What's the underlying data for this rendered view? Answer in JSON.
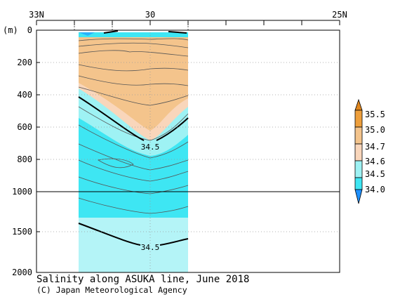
{
  "chart_data": {
    "type": "heatmap",
    "title": "Salinity along ASUKA line, June 2018",
    "credit": "(C) Japan Meteorological Agency",
    "y_unit": "(m)",
    "x_ticks": [
      "33N",
      "30",
      "25N"
    ],
    "x_tick_values": [
      33,
      30,
      25
    ],
    "x_range": [
      33,
      25
    ],
    "y_ticks_upper": [
      "0",
      "200",
      "400",
      "600",
      "800",
      "1000"
    ],
    "y_ticks_lower": [
      "1500",
      "2000"
    ],
    "y_tick_values": [
      0,
      200,
      400,
      600,
      800,
      1000,
      1500,
      2000
    ],
    "y_range": [
      0,
      2000
    ],
    "data_extent": {
      "lat_north": 32.0,
      "lat_south": 29.1
    },
    "grid": true,
    "legend_position": "right",
    "colorbar": {
      "levels": [
        "35.5",
        "35.0",
        "34.7",
        "34.6",
        "34.5",
        "34.0"
      ],
      "bins": [
        {
          "range": "above 35.5",
          "color": "#e0871f"
        },
        {
          "range": "35.0-35.5",
          "color": "#ee9f3c"
        },
        {
          "range": "34.7-35.0",
          "color": "#f4c48c"
        },
        {
          "range": "34.6-34.7",
          "color": "#f9d6bb"
        },
        {
          "range": "34.5-34.6",
          "color": "#9ef2f4"
        },
        {
          "range": "34.0-34.5",
          "color": "#3ee6f3"
        },
        {
          "range": "below 34.0",
          "color": "#1e90ff"
        }
      ]
    },
    "contour_labels": [
      {
        "text": "34.5",
        "lat": 30.0,
        "depth": 720
      },
      {
        "text": "34.5",
        "lat": 30.0,
        "depth": 1710
      }
    ]
  }
}
